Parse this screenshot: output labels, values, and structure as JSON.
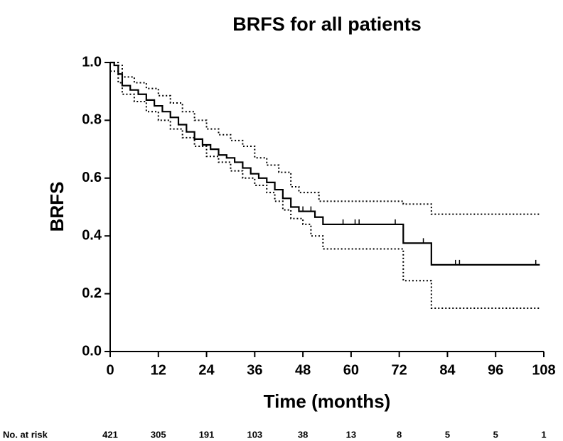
{
  "chart_data": {
    "type": "step",
    "title": "BRFS for all patients",
    "x_label": "Time  (months)",
    "y_label": "BRFS",
    "xlim": [
      0,
      108
    ],
    "ylim": [
      0,
      1
    ],
    "xticks": [
      0,
      12,
      24,
      36,
      48,
      60,
      72,
      84,
      96,
      108
    ],
    "yticks": [
      {
        "value": 0,
        "label": "0.0"
      },
      0.2,
      0.4,
      0.6,
      0.8,
      {
        "value": 1,
        "label": "1.0"
      }
    ],
    "series": [
      {
        "color": "#000000",
        "dash": "solid",
        "x": [
          0,
          1,
          2,
          3,
          5,
          7,
          9,
          11,
          13,
          15,
          17,
          19,
          21,
          23,
          25,
          27,
          29,
          31,
          33,
          35,
          37,
          39,
          41,
          43,
          45,
          47,
          51,
          53,
          73,
          80,
          107
        ],
        "values": [
          1.0,
          0.99,
          0.96,
          0.92,
          0.905,
          0.89,
          0.87,
          0.85,
          0.83,
          0.81,
          0.785,
          0.76,
          0.735,
          0.715,
          0.7,
          0.68,
          0.67,
          0.655,
          0.635,
          0.615,
          0.6,
          0.585,
          0.56,
          0.53,
          0.5,
          0.485,
          0.465,
          0.44,
          0.375,
          0.3,
          0.3
        ]
      },
      {
        "color": "#000000",
        "dash": "dotted",
        "x": [
          0,
          2,
          3,
          6,
          9,
          12,
          15,
          18,
          21,
          24,
          27,
          30,
          33,
          36,
          39,
          42,
          45,
          47,
          52,
          73,
          80,
          107
        ],
        "values": [
          1.0,
          0.99,
          0.95,
          0.93,
          0.91,
          0.885,
          0.86,
          0.83,
          0.8,
          0.77,
          0.75,
          0.73,
          0.71,
          0.67,
          0.645,
          0.62,
          0.57,
          0.55,
          0.52,
          0.51,
          0.475,
          0.475
        ]
      },
      {
        "color": "#000000",
        "dash": "dotted",
        "x": [
          0,
          2,
          3,
          6,
          9,
          12,
          15,
          18,
          21,
          24,
          27,
          30,
          33,
          36,
          39,
          41,
          43,
          45,
          48,
          50,
          53,
          73,
          80,
          107
        ],
        "values": [
          0.97,
          0.93,
          0.89,
          0.865,
          0.83,
          0.8,
          0.77,
          0.74,
          0.71,
          0.675,
          0.655,
          0.625,
          0.6,
          0.575,
          0.55,
          0.52,
          0.49,
          0.46,
          0.44,
          0.4,
          0.355,
          0.245,
          0.15,
          0.15
        ]
      }
    ],
    "censor": {
      "x": [
        48,
        50,
        58,
        61,
        62,
        71,
        78,
        86,
        87,
        106
      ],
      "values": [
        0.485,
        0.485,
        0.44,
        0.44,
        0.44,
        0.44,
        0.375,
        0.3,
        0.3,
        0.3
      ]
    },
    "risk_table": {
      "label": "No. at risk",
      "x": [
        0,
        12,
        24,
        36,
        48,
        60,
        72,
        84,
        96,
        108
      ],
      "values": [
        421,
        305,
        191,
        103,
        38,
        13,
        8,
        5,
        5,
        1
      ]
    }
  }
}
